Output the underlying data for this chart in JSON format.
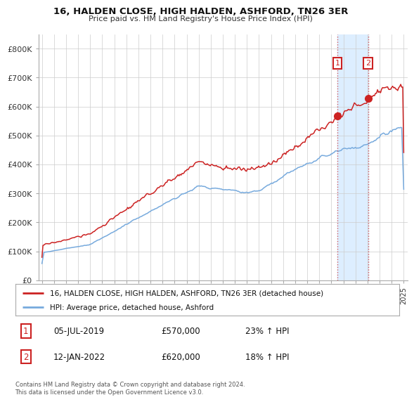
{
  "title": "16, HALDEN CLOSE, HIGH HALDEN, ASHFORD, TN26 3ER",
  "subtitle": "Price paid vs. HM Land Registry's House Price Index (HPI)",
  "ylim": [
    0,
    850000
  ],
  "yticks": [
    0,
    100000,
    200000,
    300000,
    400000,
    500000,
    600000,
    700000,
    800000
  ],
  "ytick_labels": [
    "£0",
    "£100K",
    "£200K",
    "£300K",
    "£400K",
    "£500K",
    "£600K",
    "£700K",
    "£800K"
  ],
  "line1_color": "#cc2222",
  "line2_color": "#77aadd",
  "shade_color": "#ddeeff",
  "t1_year": 2019.5,
  "t2_year": 2022.04,
  "t1_value": 570000,
  "t2_value": 620000,
  "legend_line1": "16, HALDEN CLOSE, HIGH HALDEN, ASHFORD, TN26 3ER (detached house)",
  "legend_line2": "HPI: Average price, detached house, Ashford",
  "table_row1": [
    "1",
    "05-JUL-2019",
    "£570,000",
    "23% ↑ HPI"
  ],
  "table_row2": [
    "2",
    "12-JAN-2022",
    "£620,000",
    "18% ↑ HPI"
  ],
  "footer": "Contains HM Land Registry data © Crown copyright and database right 2024.\nThis data is licensed under the Open Government Licence v3.0.",
  "bg_color": "#ffffff",
  "grid_color": "#cccccc",
  "start_year": 1995,
  "end_year": 2025
}
